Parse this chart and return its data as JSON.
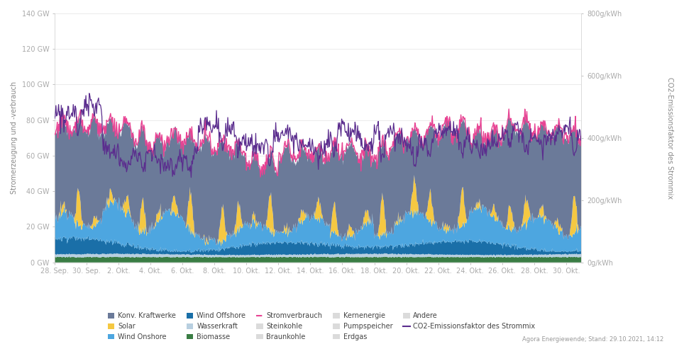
{
  "ylabel_left": "Stromerzeugung und -verbrauch",
  "ylabel_right": "CO2-Emissionsfaktor des Strommix",
  "ylim_left": [
    0,
    140
  ],
  "ylim_right": [
    0,
    800
  ],
  "yticks_left": [
    0,
    20,
    40,
    60,
    80,
    100,
    120,
    140
  ],
  "ytick_labels_left": [
    "0 GW",
    "20 GW",
    "40 GW",
    "60 GW",
    "80 GW",
    "100 GW",
    "120 GW",
    "140 GW"
  ],
  "yticks_right": [
    0,
    200,
    400,
    600,
    800
  ],
  "ytick_labels_right": [
    "0g/kWh",
    "200g/kWh",
    "400g/kWh",
    "600g/kWh",
    "800g/kWh"
  ],
  "xtick_labels": [
    "28. Sep.",
    "30. Sep.",
    "2. Okt.",
    "4. Okt.",
    "6. Okt.",
    "8. Okt.",
    "10. Okt.",
    "12. Okt.",
    "14. Okt.",
    "16. Okt.",
    "18. Okt.",
    "20. Okt.",
    "22. Okt.",
    "24. Okt.",
    "26. Okt.",
    "28. Okt.",
    "30. Okt."
  ],
  "colors": {
    "konv_kraftwerke": "#6b7a99",
    "solar": "#f5c842",
    "wind_onshore": "#4da6e0",
    "wind_offshore": "#1a6fa8",
    "wasserkraft": "#b8cfe0",
    "biomasse": "#3a7d44",
    "stromverbrauch": "#e84393",
    "co2": "#5b2d8e"
  },
  "bg_color": "#ffffff",
  "grid_color": "#e8e8e8",
  "source_text": "Agora Energiewende; Stand: 29.10.2021, 14:12"
}
